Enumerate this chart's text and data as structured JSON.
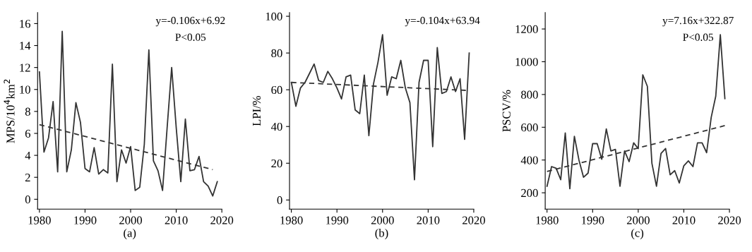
{
  "chart_data": [
    {
      "type": "line",
      "xlabel": "(a)",
      "ylabel": "MPS/10$^{4}$km$^{2}$",
      "annotations": [
        "y=-0.106x+6.92",
        "P<0.05"
      ],
      "xlim": [
        1979.6,
        2020
      ],
      "ylim": [
        -0.9,
        17
      ],
      "xticks": [
        1980,
        1990,
        2000,
        2010,
        2020
      ],
      "yticks": [
        0,
        2,
        4,
        6,
        8,
        10,
        12,
        14,
        16
      ],
      "grid": false,
      "legend": false,
      "series": [
        {
          "color": "#333333",
          "line_style": "solid",
          "x": [
            1980,
            1981,
            1982,
            1983,
            1984,
            1985,
            1986,
            1987,
            1988,
            1989,
            1990,
            1991,
            1992,
            1993,
            1994,
            1995,
            1996,
            1997,
            1998,
            1999,
            2000,
            2001,
            2002,
            2003,
            2004,
            2005,
            2006,
            2007,
            2008,
            2009,
            2010,
            2011,
            2012,
            2013,
            2014,
            2015,
            2016,
            2017,
            2018,
            2019
          ],
          "values": [
            11.6,
            4.3,
            5.6,
            8.9,
            2.5,
            15.3,
            2.5,
            4.5,
            8.8,
            7.0,
            2.8,
            2.5,
            4.7,
            2.3,
            2.7,
            2.4,
            12.3,
            1.6,
            4.5,
            3.3,
            4.8,
            0.8,
            1.1,
            5.0,
            13.6,
            3.5,
            2.6,
            0.8,
            6.5,
            12.0,
            6.5,
            1.6,
            7.3,
            2.6,
            2.7,
            3.9,
            1.6,
            1.2,
            0.3,
            1.6
          ]
        },
        {
          "color": "#333333",
          "line_style": "dashed",
          "x": [
            1980,
            2018
          ],
          "values": [
            6.8,
            2.7
          ]
        }
      ]
    },
    {
      "type": "line",
      "xlabel": "(b)",
      "ylabel": "LPI/%",
      "annotations": [
        "y=-0.104x+63.94"
      ],
      "xlim": [
        1979.6,
        2020
      ],
      "ylim": [
        -5,
        102
      ],
      "xticks": [
        1980,
        1990,
        2000,
        2010,
        2020
      ],
      "yticks": [
        0,
        20,
        40,
        60,
        80,
        100
      ],
      "grid": false,
      "legend": false,
      "series": [
        {
          "color": "#333333",
          "line_style": "solid",
          "x": [
            1980,
            1981,
            1982,
            1983,
            1984,
            1985,
            1986,
            1987,
            1988,
            1989,
            1990,
            1991,
            1992,
            1993,
            1994,
            1995,
            1996,
            1997,
            1998,
            1999,
            2000,
            2001,
            2002,
            2003,
            2004,
            2005,
            2006,
            2007,
            2008,
            2009,
            2010,
            2011,
            2012,
            2013,
            2014,
            2015,
            2016,
            2017,
            2018,
            2019
          ],
          "values": [
            64,
            51,
            61,
            64,
            69,
            74,
            65,
            64,
            70,
            66,
            61,
            55,
            67,
            68,
            49,
            47,
            68,
            35,
            63,
            75,
            90,
            57,
            67,
            66,
            76,
            61,
            53,
            11,
            64,
            76,
            76,
            29,
            83,
            58,
            59,
            67,
            59,
            66,
            33,
            80
          ]
        },
        {
          "color": "#333333",
          "line_style": "dashed",
          "x": [
            1980,
            2019
          ],
          "values": [
            64,
            59.6
          ]
        }
      ]
    },
    {
      "type": "line",
      "xlabel": "(c)",
      "ylabel": "PSCV/%",
      "annotations": [
        "y=7.16x+322.87",
        "P<0.05"
      ],
      "xlim": [
        1979.6,
        2020
      ],
      "ylim": [
        100,
        1300
      ],
      "xticks": [
        1980,
        1990,
        2000,
        2010,
        2020
      ],
      "yticks": [
        200,
        400,
        600,
        800,
        1000,
        1200
      ],
      "grid": false,
      "legend": false,
      "series": [
        {
          "color": "#333333",
          "line_style": "solid",
          "x": [
            1980,
            1981,
            1982,
            1983,
            1984,
            1985,
            1986,
            1987,
            1988,
            1989,
            1990,
            1991,
            1992,
            1993,
            1994,
            1995,
            1996,
            1997,
            1998,
            1999,
            2000,
            2001,
            2002,
            2003,
            2004,
            2005,
            2006,
            2007,
            2008,
            2009,
            2010,
            2011,
            2012,
            2013,
            2014,
            2015,
            2016,
            2017,
            2018,
            2019
          ],
          "values": [
            240,
            360,
            350,
            280,
            565,
            225,
            545,
            400,
            295,
            320,
            500,
            500,
            405,
            590,
            455,
            465,
            240,
            455,
            390,
            505,
            470,
            920,
            850,
            380,
            240,
            440,
            470,
            310,
            335,
            260,
            365,
            395,
            360,
            505,
            505,
            445,
            660,
            790,
            1165,
            775
          ]
        },
        {
          "color": "#333333",
          "line_style": "dashed",
          "x": [
            1980,
            2019
          ],
          "values": [
            330,
            610
          ]
        }
      ]
    }
  ]
}
